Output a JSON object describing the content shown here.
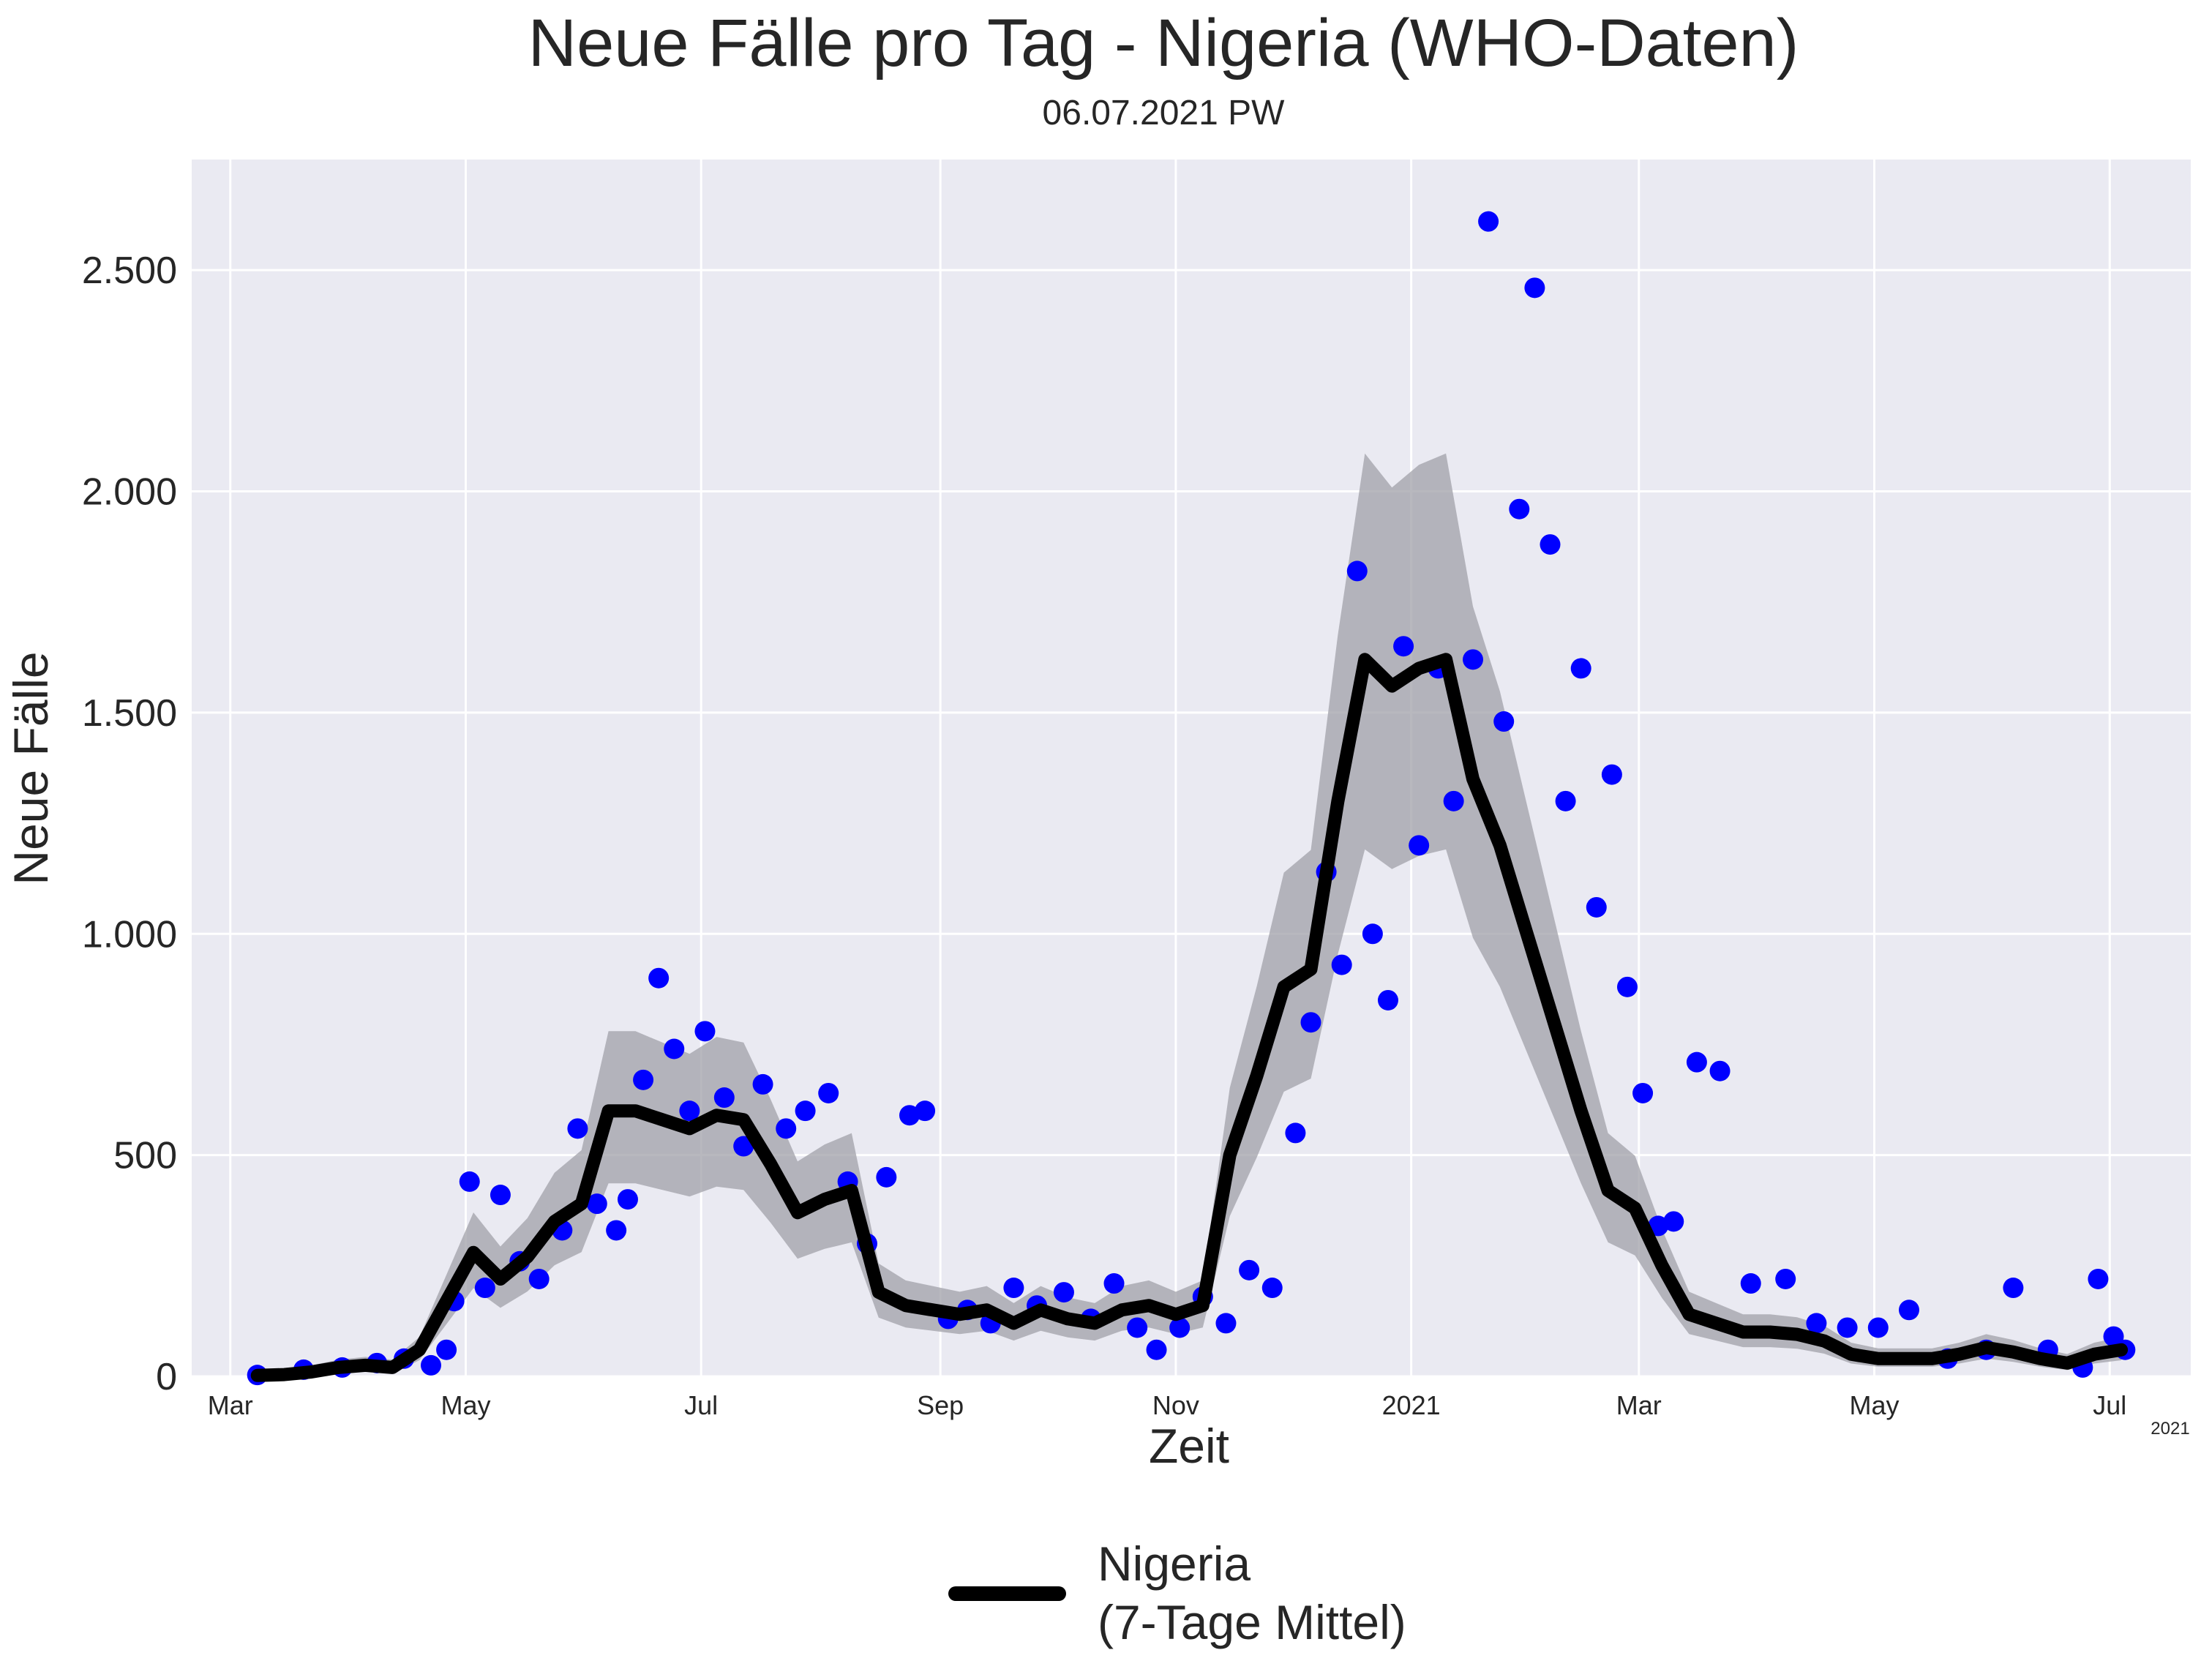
{
  "chart_data": {
    "type": "line",
    "title": "Neue Fälle pro Tag - Nigeria (WHO-Daten)",
    "subtitle": "06.07.2021 PW",
    "xlabel": "Zeit",
    "ylabel": "Neue Fälle",
    "x_range": [
      "2020-02-20",
      "2021-07-22"
    ],
    "ylim": [
      0,
      2750
    ],
    "y_ticks": [
      0,
      500,
      1000,
      1500,
      2000,
      2500
    ],
    "y_tick_labels": [
      "0",
      "500",
      "1.000",
      "1.500",
      "2.000",
      "2.500"
    ],
    "x_ticks": [
      {
        "date": "2020-03-01",
        "label": "Mar"
      },
      {
        "date": "2020-05-01",
        "label": "May"
      },
      {
        "date": "2020-07-01",
        "label": "Jul"
      },
      {
        "date": "2020-09-01",
        "label": "Sep"
      },
      {
        "date": "2020-11-01",
        "label": "Nov"
      },
      {
        "date": "2021-01-01",
        "label": "2021"
      },
      {
        "date": "2021-03-01",
        "label": "Mar"
      },
      {
        "date": "2021-05-01",
        "label": "May"
      },
      {
        "date": "2021-07-01",
        "label": "Jul"
      }
    ],
    "x_offset_label": "2021",
    "grid": true,
    "legend_position": "bottom-center",
    "colors": {
      "background": "#eaeaf2",
      "grid": "#ffffff",
      "points": "#0000ff",
      "mean_line": "#000000",
      "band": "#a0a0a8"
    },
    "series": [
      {
        "name": "Nigeria\n(7-Tage Mittel)",
        "legend_lines": [
          "Nigeria",
          "(7-Tage Mittel)"
        ],
        "role": "7-day mean line",
        "x": [
          "2020-03-08",
          "2020-03-15",
          "2020-03-22",
          "2020-03-29",
          "2020-04-05",
          "2020-04-12",
          "2020-04-19",
          "2020-04-26",
          "2020-05-03",
          "2020-05-10",
          "2020-05-17",
          "2020-05-24",
          "2020-05-31",
          "2020-06-07",
          "2020-06-14",
          "2020-06-21",
          "2020-06-28",
          "2020-07-05",
          "2020-07-12",
          "2020-07-19",
          "2020-07-26",
          "2020-08-02",
          "2020-08-09",
          "2020-08-16",
          "2020-08-23",
          "2020-08-30",
          "2020-09-06",
          "2020-09-13",
          "2020-09-20",
          "2020-09-27",
          "2020-10-04",
          "2020-10-11",
          "2020-10-18",
          "2020-10-25",
          "2020-11-01",
          "2020-11-08",
          "2020-11-15",
          "2020-11-22",
          "2020-11-29",
          "2020-12-06",
          "2020-12-13",
          "2020-12-20",
          "2020-12-27",
          "2021-01-03",
          "2021-01-10",
          "2021-01-17",
          "2021-01-24",
          "2021-01-31",
          "2021-02-07",
          "2021-02-14",
          "2021-02-21",
          "2021-02-28",
          "2021-03-07",
          "2021-03-14",
          "2021-03-21",
          "2021-03-28",
          "2021-04-04",
          "2021-04-11",
          "2021-04-18",
          "2021-04-25",
          "2021-05-02",
          "2021-05-09",
          "2021-05-16",
          "2021-05-23",
          "2021-05-30",
          "2021-06-06",
          "2021-06-13",
          "2021-06-20",
          "2021-06-27",
          "2021-07-04"
        ],
        "values": [
          2,
          4,
          10,
          20,
          25,
          20,
          60,
          170,
          280,
          220,
          270,
          350,
          390,
          600,
          600,
          580,
          560,
          590,
          580,
          480,
          370,
          400,
          420,
          190,
          160,
          150,
          140,
          150,
          120,
          150,
          130,
          120,
          150,
          160,
          140,
          160,
          500,
          680,
          880,
          920,
          1300,
          1620,
          1560,
          1600,
          1620,
          1350,
          1200,
          1000,
          800,
          600,
          420,
          380,
          250,
          140,
          120,
          100,
          100,
          95,
          80,
          50,
          40,
          40,
          40,
          50,
          65,
          55,
          40,
          30,
          50,
          60
        ]
      },
      {
        "name": "",
        "role": "daily new cases (points)",
        "x": [
          "2020-03-08",
          "2020-03-20",
          "2020-03-30",
          "2020-04-08",
          "2020-04-15",
          "2020-04-22",
          "2020-04-26",
          "2020-04-28",
          "2020-05-02",
          "2020-05-06",
          "2020-05-10",
          "2020-05-15",
          "2020-05-20",
          "2020-05-26",
          "2020-05-30",
          "2020-06-04",
          "2020-06-09",
          "2020-06-12",
          "2020-06-16",
          "2020-06-20",
          "2020-06-24",
          "2020-06-28",
          "2020-07-02",
          "2020-07-07",
          "2020-07-12",
          "2020-07-17",
          "2020-07-23",
          "2020-07-28",
          "2020-08-03",
          "2020-08-08",
          "2020-08-13",
          "2020-08-18",
          "2020-08-24",
          "2020-08-28",
          "2020-09-03",
          "2020-09-08",
          "2020-09-14",
          "2020-09-20",
          "2020-09-26",
          "2020-10-03",
          "2020-10-10",
          "2020-10-16",
          "2020-10-22",
          "2020-10-27",
          "2020-11-02",
          "2020-11-08",
          "2020-11-14",
          "2020-11-20",
          "2020-11-26",
          "2020-12-02",
          "2020-12-06",
          "2020-12-10",
          "2020-12-14",
          "2020-12-18",
          "2020-12-22",
          "2020-12-26",
          "2020-12-30",
          "2021-01-03",
          "2021-01-08",
          "2021-01-12",
          "2021-01-17",
          "2021-01-21",
          "2021-01-25",
          "2021-01-29",
          "2021-02-02",
          "2021-02-06",
          "2021-02-10",
          "2021-02-14",
          "2021-02-18",
          "2021-02-22",
          "2021-02-26",
          "2021-03-02",
          "2021-03-06",
          "2021-03-10",
          "2021-03-16",
          "2021-03-22",
          "2021-03-30",
          "2021-04-08",
          "2021-04-16",
          "2021-04-24",
          "2021-05-02",
          "2021-05-10",
          "2021-05-20",
          "2021-05-30",
          "2021-06-06",
          "2021-06-15",
          "2021-06-24",
          "2021-06-28",
          "2021-07-02",
          "2021-07-05"
        ],
        "values": [
          3,
          15,
          20,
          30,
          40,
          25,
          60,
          170,
          440,
          200,
          410,
          260,
          220,
          330,
          560,
          390,
          330,
          400,
          670,
          900,
          740,
          600,
          780,
          630,
          520,
          660,
          560,
          600,
          640,
          440,
          300,
          450,
          590,
          600,
          130,
          150,
          120,
          200,
          160,
          190,
          130,
          210,
          110,
          60,
          110,
          180,
          120,
          240,
          200,
          550,
          800,
          1140,
          930,
          1820,
          1000,
          850,
          1650,
          1200,
          1600,
          1300,
          1620,
          2610,
          1480,
          1960,
          2460,
          1880,
          1300,
          1600,
          1060,
          1360,
          880,
          640,
          340,
          350,
          710,
          690,
          210,
          220,
          120,
          110,
          110,
          150,
          40,
          60,
          200,
          60,
          20,
          220,
          90,
          60
        ]
      }
    ]
  }
}
